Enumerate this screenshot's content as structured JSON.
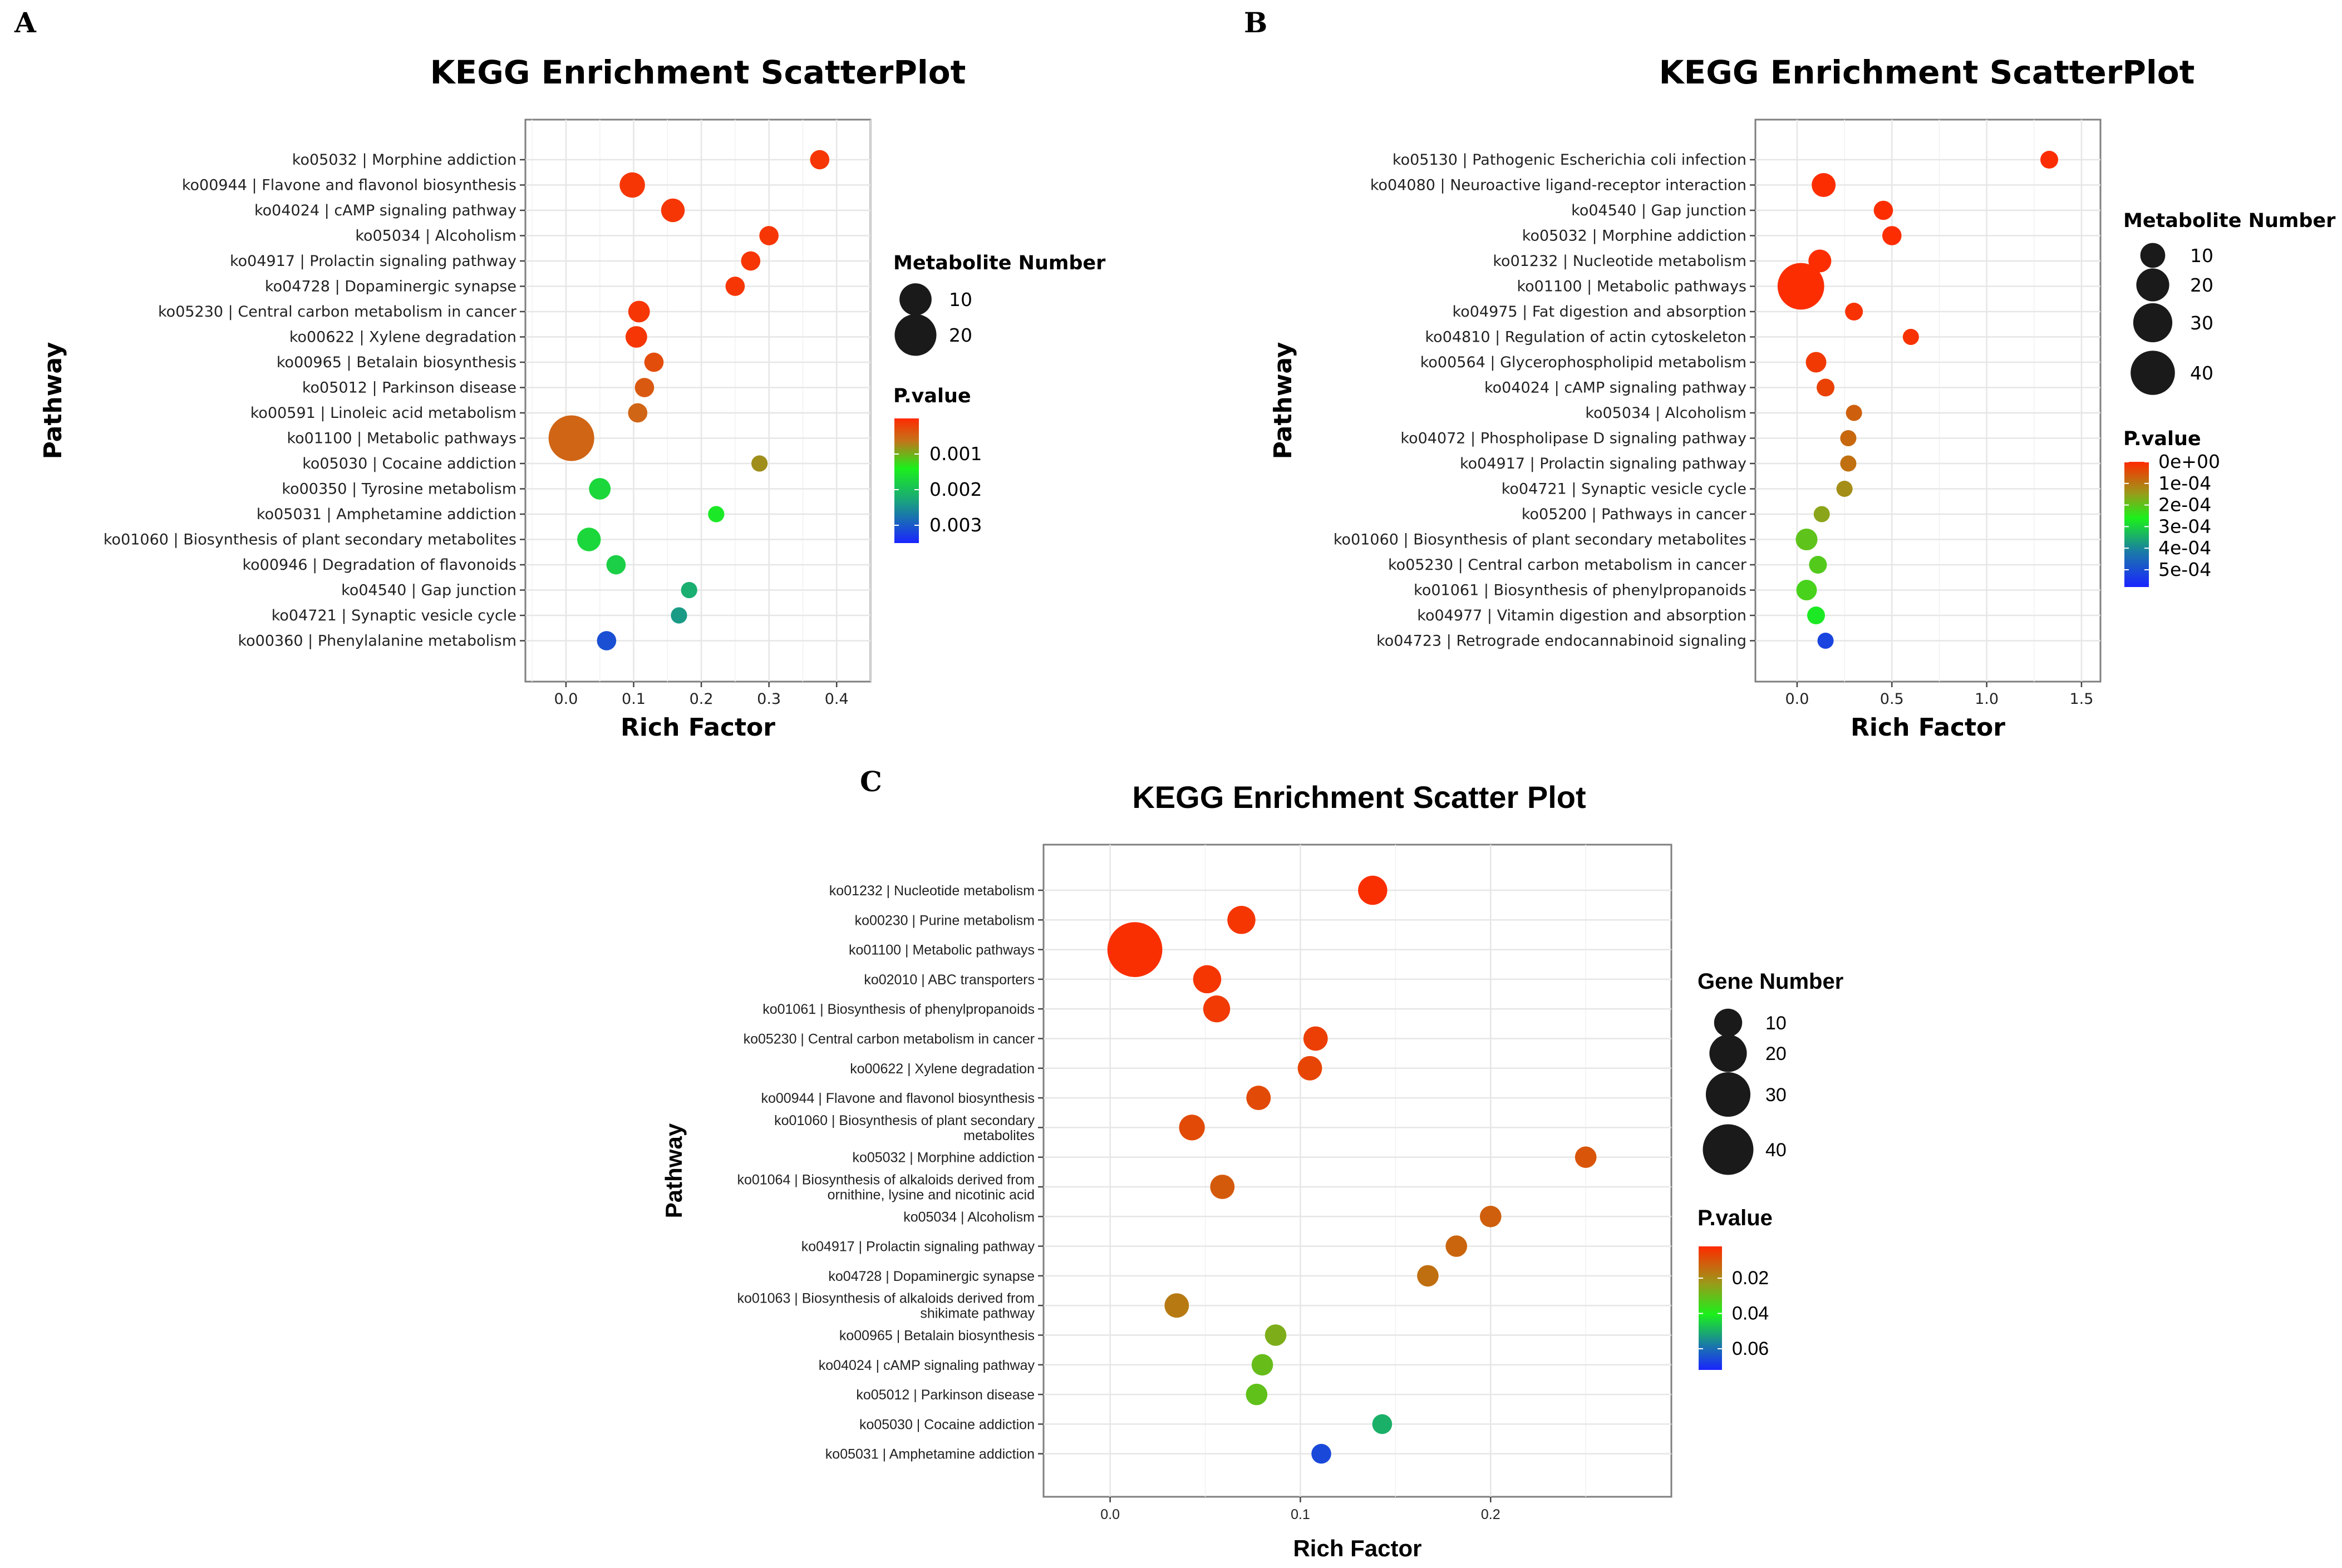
{
  "chart_data": [
    {
      "panel": "A",
      "type": "scatter",
      "title": "KEGG Enrichment ScatterPlot",
      "xlabel": "Rich Factor",
      "ylabel": "Pathway",
      "xlim": [
        -0.06,
        0.45
      ],
      "xticks": [
        0.0,
        0.1,
        0.2,
        0.3,
        0.4
      ],
      "xtick_labels": [
        "0.0",
        "0.1",
        "0.2",
        "0.3",
        "0.4"
      ],
      "size_legend": {
        "title": "Metabolite Number",
        "values": [
          10,
          20
        ]
      },
      "color_legend": {
        "title": "P.value",
        "min": 0,
        "max": 0.0035,
        "ticks": [
          0.001,
          0.002,
          0.003
        ],
        "tick_labels": [
          "0.001",
          "0.002",
          "0.003"
        ]
      },
      "points": [
        {
          "pathway": "ko05032 | Morphine addiction",
          "rich_factor": 0.375,
          "count": 2,
          "pvalue": 0.0001
        },
        {
          "pathway": "ko00944 | Flavone and flavonol biosynthesis",
          "rich_factor": 0.098,
          "count": 5,
          "pvalue": 0.0001
        },
        {
          "pathway": "ko04024 | cAMP signaling pathway",
          "rich_factor": 0.158,
          "count": 4,
          "pvalue": 0.0001
        },
        {
          "pathway": "ko05034 | Alcoholism",
          "rich_factor": 0.3,
          "count": 2,
          "pvalue": 0.0001
        },
        {
          "pathway": "ko04917 | Prolactin signaling pathway",
          "rich_factor": 0.273,
          "count": 2,
          "pvalue": 0.0001
        },
        {
          "pathway": "ko04728 | Dopaminergic synapse",
          "rich_factor": 0.25,
          "count": 2,
          "pvalue": 0.0001
        },
        {
          "pathway": "ko05230 | Central carbon metabolism in cancer",
          "rich_factor": 0.108,
          "count": 3,
          "pvalue": 0.0001
        },
        {
          "pathway": "ko00622 | Xylene degradation",
          "rich_factor": 0.104,
          "count": 3,
          "pvalue": 0.0001
        },
        {
          "pathway": "ko00965 | Betalain biosynthesis",
          "rich_factor": 0.13,
          "count": 2,
          "pvalue": 0.0003
        },
        {
          "pathway": "ko05012 | Parkinson disease",
          "rich_factor": 0.116,
          "count": 2,
          "pvalue": 0.0004
        },
        {
          "pathway": "ko00591 | Linoleic acid metabolism",
          "rich_factor": 0.106,
          "count": 2,
          "pvalue": 0.0005
        },
        {
          "pathway": "ko01100 | Metabolic pathways",
          "rich_factor": 0.008,
          "count": 25,
          "pvalue": 0.0005
        },
        {
          "pathway": "ko05030 | Cocaine addiction",
          "rich_factor": 0.286,
          "count": 1,
          "pvalue": 0.0008
        },
        {
          "pathway": "ko00350 | Tyrosine metabolism",
          "rich_factor": 0.05,
          "count": 3,
          "pvalue": 0.0017
        },
        {
          "pathway": "ko05031 | Amphetamine addiction",
          "rich_factor": 0.222,
          "count": 1,
          "pvalue": 0.0015
        },
        {
          "pathway": "ko01060 | Biosynthesis of plant secondary metabolites",
          "rich_factor": 0.034,
          "count": 4,
          "pvalue": 0.0017
        },
        {
          "pathway": "ko00946 | Degradation of flavonoids",
          "rich_factor": 0.074,
          "count": 2,
          "pvalue": 0.0018
        },
        {
          "pathway": "ko04540 | Gap junction",
          "rich_factor": 0.182,
          "count": 1,
          "pvalue": 0.0022
        },
        {
          "pathway": "ko04721 | Synaptic vesicle cycle",
          "rich_factor": 0.167,
          "count": 1,
          "pvalue": 0.0024
        },
        {
          "pathway": "ko00360 | Phenylalanine metabolism",
          "rich_factor": 0.06,
          "count": 2,
          "pvalue": 0.0031
        }
      ]
    },
    {
      "panel": "B",
      "type": "scatter",
      "title": "KEGG Enrichment ScatterPlot",
      "xlabel": "Rich Factor",
      "ylabel": "Pathway",
      "xlim": [
        -0.22,
        1.6
      ],
      "xticks": [
        0.0,
        0.5,
        1.0,
        1.5
      ],
      "xtick_labels": [
        "0.0",
        "0.5",
        "1.0",
        "1.5"
      ],
      "size_legend": {
        "title": "Metabolite Number",
        "values": [
          10,
          20,
          30,
          40
        ]
      },
      "color_legend": {
        "title": "P.value",
        "min": 0,
        "max": 0.00058,
        "ticks": [
          0,
          0.0001,
          0.0002,
          0.0003,
          0.0004,
          0.0005
        ],
        "tick_labels": [
          "0e+00",
          "1e-04",
          "2e-04",
          "3e-04",
          "4e-04",
          "5e-04"
        ]
      },
      "points": [
        {
          "pathway": "ko05130 | Pathogenic Escherichia coli infection",
          "rich_factor": 1.33,
          "count": 4,
          "pvalue": 5e-06
        },
        {
          "pathway": "ko04080 | Neuroactive ligand-receptor interaction",
          "rich_factor": 0.14,
          "count": 9,
          "pvalue": 5e-06
        },
        {
          "pathway": "ko04540 | Gap junction",
          "rich_factor": 0.455,
          "count": 5,
          "pvalue": 5e-06
        },
        {
          "pathway": "ko05032 | Morphine addiction",
          "rich_factor": 0.5,
          "count": 5,
          "pvalue": 5e-06
        },
        {
          "pathway": "ko01232 | Nucleotide metabolism",
          "rich_factor": 0.12,
          "count": 8,
          "pvalue": 5e-06
        },
        {
          "pathway": "ko01100 | Metabolic pathways",
          "rich_factor": 0.02,
          "count": 45,
          "pvalue": 5e-06
        },
        {
          "pathway": "ko04975 | Fat digestion and absorption",
          "rich_factor": 0.3,
          "count": 4,
          "pvalue": 1e-05
        },
        {
          "pathway": "ko04810 | Regulation of actin cytoskeleton",
          "rich_factor": 0.6,
          "count": 3,
          "pvalue": 1e-05
        },
        {
          "pathway": "ko00564 | Glycerophospholipid metabolism",
          "rich_factor": 0.1,
          "count": 6,
          "pvalue": 2e-05
        },
        {
          "pathway": "ko04024 | cAMP signaling pathway",
          "rich_factor": 0.15,
          "count": 4,
          "pvalue": 3e-05
        },
        {
          "pathway": "ko05034 | Alcoholism",
          "rich_factor": 0.3,
          "count": 3,
          "pvalue": 7e-05
        },
        {
          "pathway": "ko04072 | Phospholipase D signaling pathway",
          "rich_factor": 0.27,
          "count": 3,
          "pvalue": 8e-05
        },
        {
          "pathway": "ko04917 | Prolactin signaling pathway",
          "rich_factor": 0.27,
          "count": 3,
          "pvalue": 9e-05
        },
        {
          "pathway": "ko04721 | Synaptic vesicle cycle",
          "rich_factor": 0.25,
          "count": 3,
          "pvalue": 0.00013
        },
        {
          "pathway": "ko05200 | Pathways in cancer",
          "rich_factor": 0.13,
          "count": 3,
          "pvalue": 0.00016
        },
        {
          "pathway": "ko01060 | Biosynthesis of plant secondary metabolites",
          "rich_factor": 0.05,
          "count": 7,
          "pvalue": 0.0002
        },
        {
          "pathway": "ko05230 | Central carbon metabolism in cancer",
          "rich_factor": 0.11,
          "count": 4,
          "pvalue": 0.00021
        },
        {
          "pathway": "ko01061 | Biosynthesis of phenylpropanoids",
          "rich_factor": 0.05,
          "count": 6,
          "pvalue": 0.00022
        },
        {
          "pathway": "ko04977 | Vitamin digestion and absorption",
          "rich_factor": 0.1,
          "count": 4,
          "pvalue": 0.00027
        },
        {
          "pathway": "ko04723 | Retrograde endocannabinoid signaling",
          "rich_factor": 0.15,
          "count": 3,
          "pvalue": 0.00052
        }
      ]
    },
    {
      "panel": "C",
      "type": "scatter",
      "title": "KEGG Enrichment Scatter Plot",
      "xlabel": "Rich Factor",
      "ylabel": "Pathway",
      "xlim": [
        -0.035,
        0.295
      ],
      "xticks": [
        0.0,
        0.1,
        0.2
      ],
      "xtick_labels": [
        "0.0",
        "0.1",
        "0.2"
      ],
      "size_legend": {
        "title": "Gene Number",
        "values": [
          10,
          20,
          30,
          40
        ]
      },
      "color_legend": {
        "title": "P.value",
        "min": 0.002,
        "max": 0.072,
        "ticks": [
          0.02,
          0.04,
          0.06
        ],
        "tick_labels": [
          "0.02",
          "0.04",
          "0.06"
        ]
      },
      "points": [
        {
          "pathway": [
            "ko01232 | Nucleotide metabolism"
          ],
          "rich_factor": 0.138,
          "count": 11,
          "pvalue": 0.003
        },
        {
          "pathway": [
            "ko00230 | Purine metabolism"
          ],
          "rich_factor": 0.069,
          "count": 10,
          "pvalue": 0.004
        },
        {
          "pathway": [
            "ko01100 | Metabolic pathways"
          ],
          "rich_factor": 0.013,
          "count": 48,
          "pvalue": 0.003
        },
        {
          "pathway": [
            "ko02010 | ABC transporters"
          ],
          "rich_factor": 0.051,
          "count": 10,
          "pvalue": 0.004
        },
        {
          "pathway": [
            "ko01061 | Biosynthesis of phenylpropanoids"
          ],
          "rich_factor": 0.056,
          "count": 9,
          "pvalue": 0.005
        },
        {
          "pathway": [
            "ko05230 | Central carbon metabolism in cancer"
          ],
          "rich_factor": 0.108,
          "count": 7,
          "pvalue": 0.006
        },
        {
          "pathway": [
            "ko00622 | Xylene degradation"
          ],
          "rich_factor": 0.105,
          "count": 7,
          "pvalue": 0.007
        },
        {
          "pathway": [
            "ko00944 | Flavone and flavonol biosynthesis"
          ],
          "rich_factor": 0.078,
          "count": 7,
          "pvalue": 0.008
        },
        {
          "pathway": [
            "ko01060 | Biosynthesis of plant secondary",
            "metabolites"
          ],
          "rich_factor": 0.043,
          "count": 8,
          "pvalue": 0.008
        },
        {
          "pathway": [
            "ko05032 | Morphine addiction"
          ],
          "rich_factor": 0.25,
          "count": 5,
          "pvalue": 0.01
        },
        {
          "pathway": [
            "ko01064 | Biosynthesis of alkaloids derived from",
            "ornithine, lysine and nicotinic acid"
          ],
          "rich_factor": 0.059,
          "count": 7,
          "pvalue": 0.011
        },
        {
          "pathway": [
            "ko05034 | Alcoholism"
          ],
          "rich_factor": 0.2,
          "count": 5,
          "pvalue": 0.012
        },
        {
          "pathway": [
            "ko04917 | Prolactin signaling pathway"
          ],
          "rich_factor": 0.182,
          "count": 5,
          "pvalue": 0.013
        },
        {
          "pathway": [
            "ko04728 | Dopaminergic synapse"
          ],
          "rich_factor": 0.167,
          "count": 5,
          "pvalue": 0.015
        },
        {
          "pathway": [
            "ko01063 | Biosynthesis of alkaloids derived from",
            "shikimate pathway"
          ],
          "rich_factor": 0.035,
          "count": 7,
          "pvalue": 0.017
        },
        {
          "pathway": [
            "ko00965 | Betalain biosynthesis"
          ],
          "rich_factor": 0.087,
          "count": 5,
          "pvalue": 0.027
        },
        {
          "pathway": [
            "ko04024 | cAMP signaling pathway"
          ],
          "rich_factor": 0.08,
          "count": 5,
          "pvalue": 0.03
        },
        {
          "pathway": [
            "ko05012 | Parkinson disease"
          ],
          "rich_factor": 0.077,
          "count": 5,
          "pvalue": 0.031
        },
        {
          "pathway": [
            "ko05030 | Cocaine addiction"
          ],
          "rich_factor": 0.143,
          "count": 4,
          "pvalue": 0.05
        },
        {
          "pathway": [
            "ko05031 | Amphetamine addiction"
          ],
          "rich_factor": 0.111,
          "count": 4,
          "pvalue": 0.066
        }
      ]
    }
  ]
}
